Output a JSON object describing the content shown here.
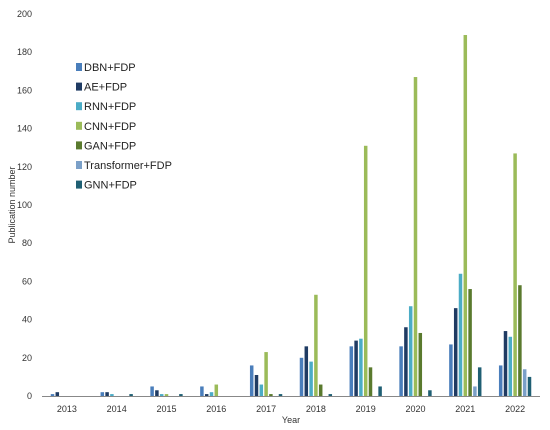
{
  "chart_data": {
    "type": "bar",
    "xlabel": "Year",
    "ylabel": "Publication number",
    "ylim": [
      0,
      200
    ],
    "yticks": [
      0,
      20,
      40,
      60,
      80,
      100,
      120,
      140,
      160,
      180,
      200
    ],
    "grid": false,
    "legend_position": "top-left",
    "categories": [
      "2013",
      "2014",
      "2015",
      "2016",
      "2017",
      "2018",
      "2019",
      "2020",
      "2021",
      "2022"
    ],
    "series": [
      {
        "name": "DBN+FDP",
        "color": "#4a7ebb",
        "values": [
          1,
          2,
          5,
          5,
          16,
          20,
          26,
          26,
          27,
          16
        ]
      },
      {
        "name": "AE+FDP",
        "color": "#1f3b63",
        "values": [
          2,
          2,
          3,
          1,
          11,
          26,
          29,
          36,
          46,
          34
        ]
      },
      {
        "name": "RNN+FDP",
        "color": "#4bacc6",
        "values": [
          0,
          1,
          1,
          2,
          6,
          18,
          30,
          47,
          64,
          31
        ]
      },
      {
        "name": "CNN+FDP",
        "color": "#9bbb59",
        "values": [
          0,
          0,
          1,
          6,
          23,
          53,
          131,
          167,
          189,
          127
        ]
      },
      {
        "name": "GAN+FDP",
        "color": "#5a7a2e",
        "values": [
          0,
          0,
          0,
          0,
          1,
          6,
          15,
          33,
          56,
          58
        ]
      },
      {
        "name": "Transformer+FDP",
        "color": "#7ba0c8",
        "values": [
          0,
          0,
          0,
          0,
          0,
          0,
          0,
          0,
          5,
          14
        ]
      },
      {
        "name": "GNN+FDP",
        "color": "#1f5f73",
        "values": [
          0,
          1,
          1,
          0,
          1,
          1,
          5,
          3,
          15,
          10
        ]
      }
    ]
  }
}
